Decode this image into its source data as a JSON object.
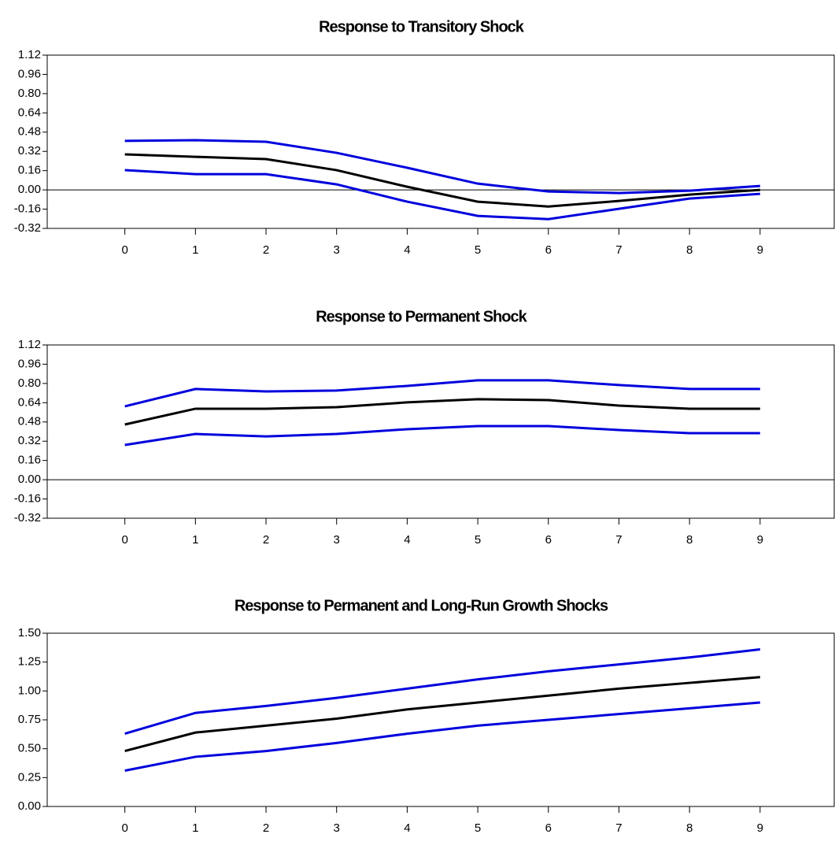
{
  "chart_data": [
    {
      "type": "line",
      "title": "Response to Transitory Shock",
      "x": [
        0,
        1,
        2,
        3,
        4,
        5,
        6,
        7,
        8,
        9
      ],
      "xlim": [
        -1.1,
        10.05
      ],
      "xticks": [
        0,
        1,
        2,
        3,
        4,
        5,
        6,
        7,
        8,
        9
      ],
      "ylim": [
        -0.32,
        1.12
      ],
      "yticks": [
        -0.32,
        -0.16,
        {
          "value": 0,
          "label": "0.00"
        },
        0.16,
        0.32,
        0.48,
        0.64,
        {
          "value": 0.8,
          "label": "0.80"
        },
        0.96,
        1.12
      ],
      "zero_line": true,
      "series": [
        {
          "color": "#0000dd",
          "values": [
            0.407,
            0.413,
            0.4,
            0.308,
            0.184,
            0.052,
            -0.013,
            -0.026,
            -0.007,
            0.033
          ]
        },
        {
          "color": "#000000",
          "values": [
            0.295,
            0.275,
            0.256,
            0.164,
            0.026,
            -0.098,
            -0.138,
            -0.092,
            -0.039,
            0.0
          ]
        },
        {
          "color": "#0000dd",
          "values": [
            0.164,
            0.131,
            0.131,
            0.046,
            -0.098,
            -0.216,
            -0.243,
            -0.157,
            -0.072,
            -0.033
          ]
        }
      ]
    },
    {
      "type": "line",
      "title": "Response to Permanent Shock",
      "x": [
        0,
        1,
        2,
        3,
        4,
        5,
        6,
        7,
        8,
        9
      ],
      "xlim": [
        -1.1,
        10.05
      ],
      "xticks": [
        0,
        1,
        2,
        3,
        4,
        5,
        6,
        7,
        8,
        9
      ],
      "ylim": [
        -0.32,
        1.12
      ],
      "yticks": [
        -0.32,
        -0.16,
        {
          "value": 0,
          "label": "0.00"
        },
        0.16,
        0.32,
        0.48,
        0.64,
        {
          "value": 0.8,
          "label": "0.80"
        },
        0.96,
        1.12
      ],
      "zero_line": true,
      "series": [
        {
          "color": "#0000dd",
          "values": [
            0.61,
            0.754,
            0.734,
            0.741,
            0.78,
            0.826,
            0.826,
            0.787,
            0.754,
            0.754
          ]
        },
        {
          "color": "#000000",
          "values": [
            0.459,
            0.59,
            0.59,
            0.603,
            0.643,
            0.669,
            0.662,
            0.616,
            0.59,
            0.59
          ]
        },
        {
          "color": "#0000dd",
          "values": [
            0.289,
            0.38,
            0.36,
            0.38,
            0.42,
            0.446,
            0.446,
            0.413,
            0.387,
            0.387
          ]
        }
      ]
    },
    {
      "type": "line",
      "title": "Response to Permanent and Long-Run Growth Shocks",
      "x": [
        0,
        1,
        2,
        3,
        4,
        5,
        6,
        7,
        8,
        9
      ],
      "xlim": [
        -1.1,
        10.05
      ],
      "xticks": [
        0,
        1,
        2,
        3,
        4,
        5,
        6,
        7,
        8,
        9
      ],
      "ylim": [
        0,
        1.5
      ],
      "yticks": [
        {
          "value": 0,
          "label": "0.00"
        },
        0.25,
        {
          "value": 0.5,
          "label": "0.50"
        },
        0.75,
        {
          "value": 1,
          "label": "1.00"
        },
        1.25,
        {
          "value": 1.5,
          "label": "1.50"
        }
      ],
      "zero_line": false,
      "series": [
        {
          "color": "#0000dd",
          "values": [
            0.63,
            0.81,
            0.87,
            0.94,
            1.02,
            1.1,
            1.17,
            1.23,
            1.29,
            1.36
          ]
        },
        {
          "color": "#000000",
          "values": [
            0.48,
            0.64,
            0.7,
            0.76,
            0.84,
            0.9,
            0.96,
            1.02,
            1.07,
            1.12
          ]
        },
        {
          "color": "#0000dd",
          "values": [
            0.31,
            0.43,
            0.48,
            0.55,
            0.63,
            0.7,
            0.75,
            0.8,
            0.85,
            0.9
          ]
        }
      ]
    }
  ]
}
